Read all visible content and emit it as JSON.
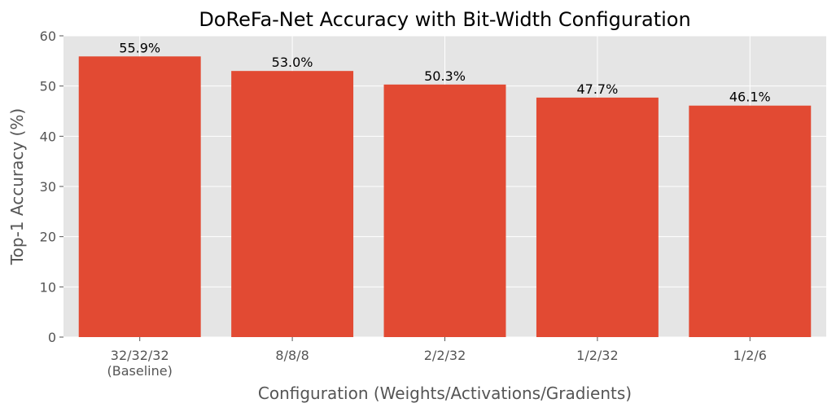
{
  "chart_data": {
    "type": "bar",
    "title": "DoReFa-Net Accuracy with Bit-Width Configuration",
    "xlabel": "Configuration (Weights/Activations/Gradients)",
    "ylabel": "Top-1 Accuracy (%)",
    "ylim": [
      0,
      60
    ],
    "yticks": [
      0,
      10,
      20,
      30,
      40,
      50,
      60
    ],
    "grid": true,
    "categories": [
      "32/32/32\n(Baseline)",
      "8/8/8",
      "2/2/32",
      "1/2/32",
      "1/2/6"
    ],
    "values": [
      55.9,
      53.0,
      50.3,
      47.7,
      46.1
    ],
    "value_labels": [
      "55.9%",
      "53.0%",
      "50.3%",
      "47.7%",
      "46.1%"
    ],
    "colors": {
      "bar": "#E24A33",
      "plot_background": "#E5E5E5",
      "grid": "#FFFFFF"
    }
  }
}
